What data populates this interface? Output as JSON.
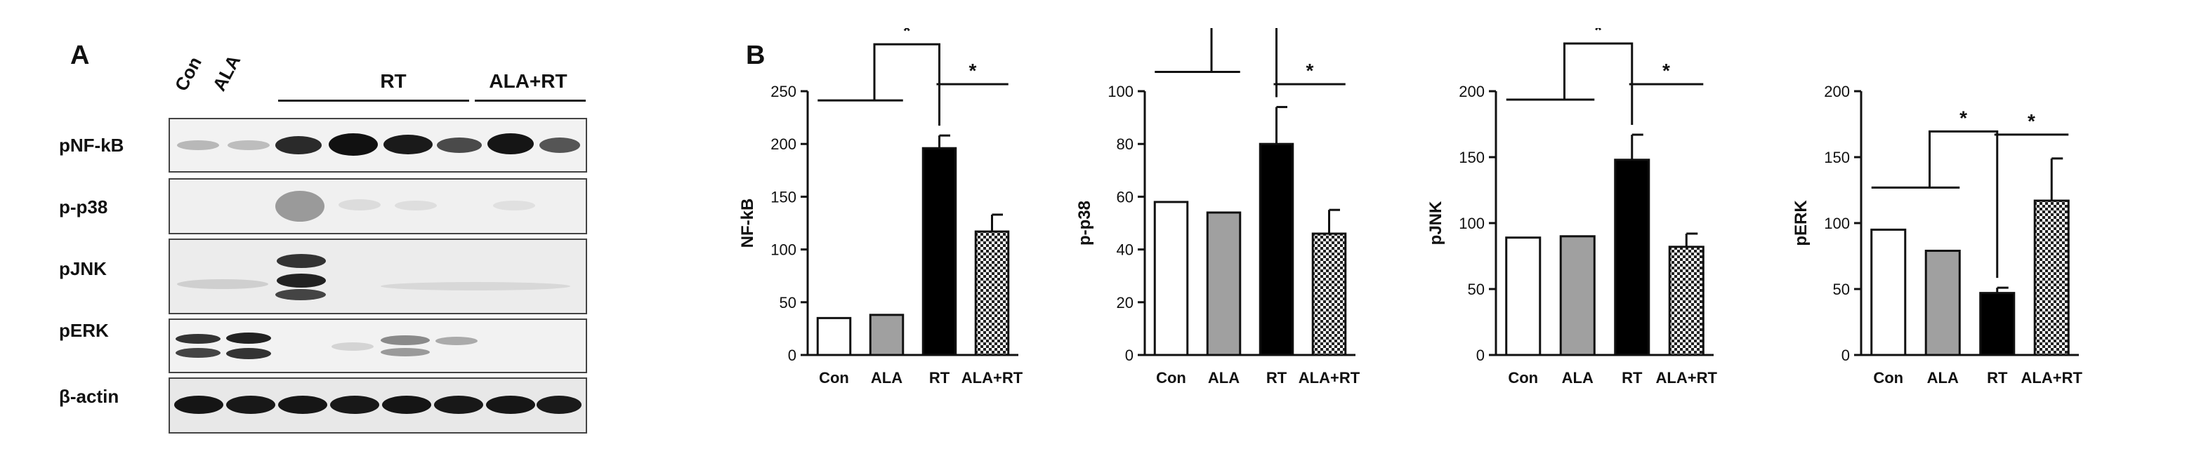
{
  "panelA": {
    "letter": "A",
    "lanes": [
      "Con",
      "ALA"
    ],
    "groups": [
      "RT",
      "ALA+RT"
    ],
    "rows": [
      "pNF-kB",
      "p-p38",
      "pJNK",
      "pERK",
      "β-actin"
    ]
  },
  "panelB": {
    "letter": "B"
  },
  "chart_data": [
    {
      "type": "bar",
      "categories": [
        "Con",
        "ALA",
        "RT",
        "ALA+RT"
      ],
      "values": [
        35,
        38,
        196,
        117
      ],
      "errors": [
        0,
        0,
        12,
        16
      ],
      "ylabel": "NF-kB",
      "ylim": [
        0,
        250
      ],
      "yticks": [
        0,
        50,
        100,
        150,
        200,
        250
      ],
      "significance": "*",
      "bar_colors": [
        "#ffffff",
        "#a0a0a0",
        "#000000",
        "checker"
      ]
    },
    {
      "type": "bar",
      "categories": [
        "Con",
        "ALA",
        "RT",
        "ALA+RT"
      ],
      "values": [
        58,
        54,
        80,
        46
      ],
      "errors": [
        0,
        0,
        14,
        9
      ],
      "ylabel": "p-p38",
      "ylim": [
        0,
        100
      ],
      "yticks": [
        0,
        20,
        40,
        60,
        80,
        100
      ],
      "significance": "*",
      "bar_colors": [
        "#ffffff",
        "#a0a0a0",
        "#000000",
        "checker"
      ]
    },
    {
      "type": "bar",
      "categories": [
        "Con",
        "ALA",
        "RT",
        "ALA+RT"
      ],
      "values": [
        89,
        90,
        148,
        82
      ],
      "errors": [
        0,
        0,
        19,
        10
      ],
      "ylabel": "pJNK",
      "ylim": [
        0,
        200
      ],
      "yticks": [
        0,
        50,
        100,
        150,
        200
      ],
      "significance": "*",
      "bar_colors": [
        "#ffffff",
        "#a0a0a0",
        "#000000",
        "checker"
      ]
    },
    {
      "type": "bar",
      "categories": [
        "Con",
        "ALA",
        "RT",
        "ALA+RT"
      ],
      "values": [
        95,
        79,
        47,
        117
      ],
      "errors": [
        0,
        0,
        4,
        32
      ],
      "ylabel": "pERK",
      "ylim": [
        0,
        200
      ],
      "yticks": [
        0,
        50,
        100,
        150,
        200
      ],
      "significance": "*",
      "bar_colors": [
        "#ffffff",
        "#a0a0a0",
        "#000000",
        "checker"
      ]
    }
  ]
}
